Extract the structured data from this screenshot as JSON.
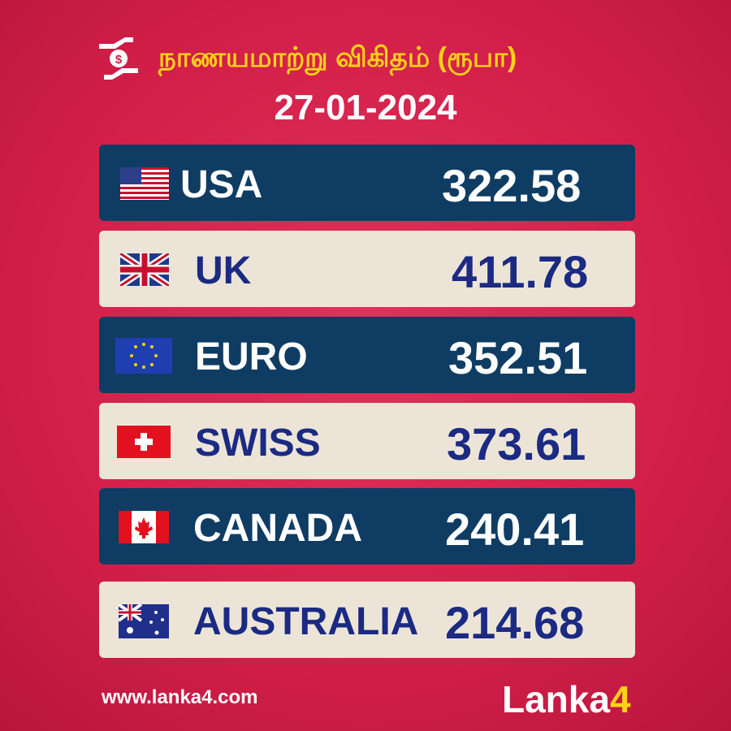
{
  "header": {
    "title": "நாணயமாற்று விகிதம் (ரூபா)",
    "date": "27-01-2024"
  },
  "rows": [
    {
      "name": "USA",
      "value": "322.58"
    },
    {
      "name": "UK",
      "value": "411.78"
    },
    {
      "name": "EURO",
      "value": "352.51"
    },
    {
      "name": "SWISS",
      "value": "373.61"
    },
    {
      "name": "CANADA",
      "value": "240.41"
    },
    {
      "name": "AUSTRALIA",
      "value": "214.68"
    }
  ],
  "footer": {
    "website": "www.lanka4.com",
    "logo": [
      "Lanka",
      "4"
    ]
  }
}
